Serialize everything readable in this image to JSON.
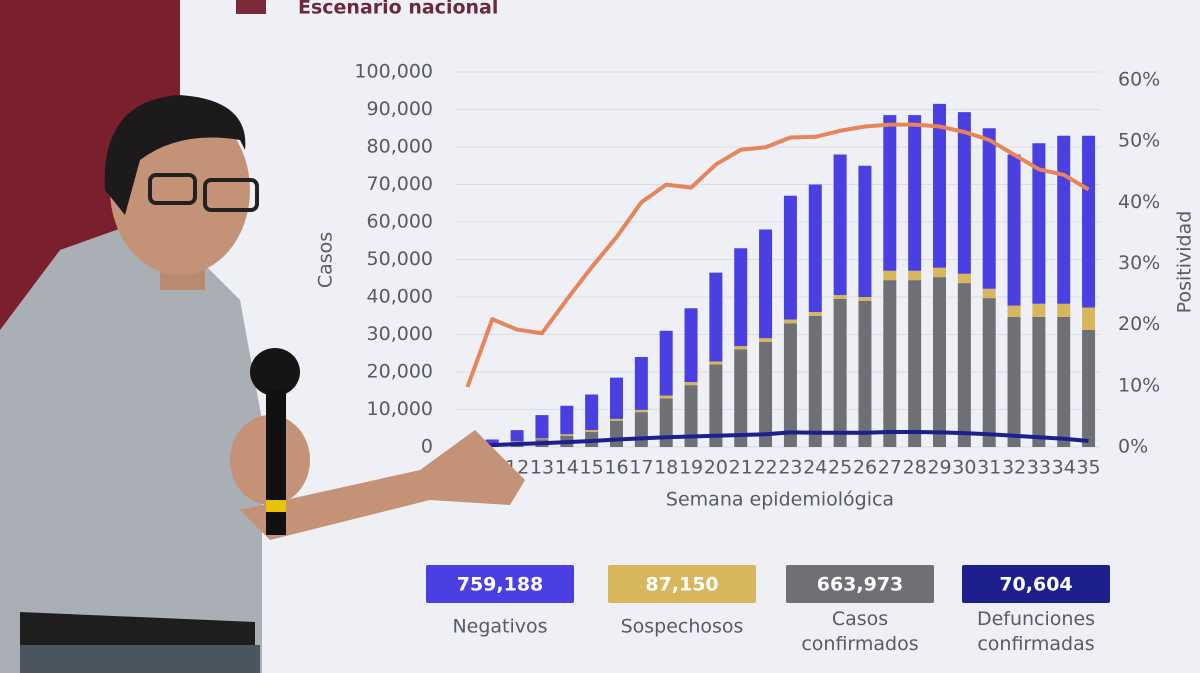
{
  "chart_data": {
    "type": "bar",
    "stacked": true,
    "title": "Escenario nacional",
    "x_label": "Semana epidemiológica",
    "y_label": "Casos",
    "y2_label": "Positividad",
    "categories": [
      null,
      null,
      "12",
      "13",
      "14",
      "15",
      "16",
      "17",
      "18",
      "19",
      "20",
      "21",
      "22",
      "23",
      "24",
      "25",
      "26",
      "27",
      "28",
      "29",
      "30",
      "31",
      "32",
      "33",
      "34",
      "35"
    ],
    "series": [
      {
        "name": "Negativos",
        "type": "bar",
        "color": "#4a3fe0",
        "total": 759188,
        "total_label": "759,188",
        "values": [
          600,
          1200,
          3000,
          6200,
          7600,
          9500,
          11000,
          14100,
          17300,
          19700,
          23700,
          26100,
          29000,
          33000,
          34000,
          37500,
          35000,
          41500,
          41500,
          43700,
          43100,
          42800,
          40300,
          42800,
          44800,
          45800
        ]
      },
      {
        "name": "Sospechosos",
        "type": "bar",
        "color": "#d8b65c",
        "total": 87150,
        "total_label": "87,150",
        "values": [
          100,
          200,
          300,
          300,
          400,
          500,
          500,
          600,
          700,
          800,
          800,
          900,
          1000,
          1000,
          1000,
          1000,
          1000,
          2500,
          2500,
          2500,
          2500,
          2500,
          3000,
          3500,
          3500,
          6000
        ]
      },
      {
        "name": "Casos confirmados",
        "type": "bar",
        "color": "#6f6f76",
        "total": 663973,
        "total_label": "663,973",
        "values": [
          300,
          600,
          1200,
          2000,
          3000,
          4000,
          7000,
          9300,
          13000,
          16500,
          22000,
          26000,
          28000,
          33000,
          35000,
          39500,
          39000,
          44500,
          44500,
          45300,
          43700,
          39700,
          34700,
          34700,
          34700,
          31200
        ]
      },
      {
        "name": "Defunciones confirmadas",
        "type": "line",
        "color": "#1d1f8c",
        "total": 70604,
        "total_label": "70,604",
        "values": [
          300,
          500,
          800,
          1000,
          1300,
          1600,
          2000,
          2300,
          2600,
          2800,
          3000,
          3200,
          3400,
          3900,
          3800,
          3800,
          3800,
          4000,
          4000,
          3900,
          3700,
          3400,
          3000,
          2600,
          2200,
          1600
        ]
      },
      {
        "type": "line",
        "axis": "y2",
        "color": "#e8845a",
        "values": [
          9.8,
          20.9,
          19.2,
          18.6,
          24.1,
          29.4,
          34.3,
          40,
          42.9,
          42.4,
          46.2,
          48.6,
          49,
          50.6,
          50.7,
          51.7,
          52.4,
          52.7,
          52.7,
          52.4,
          51.5,
          50.2,
          47.8,
          45.4,
          44.5,
          42.1
        ]
      }
    ],
    "ylim": [
      0,
      100000
    ],
    "yticks": [
      0,
      {
        "value": 10000,
        "label": "10,000"
      },
      {
        "value": 20000,
        "label": "20,000"
      },
      {
        "value": 30000,
        "label": "30,000"
      },
      {
        "value": 40000,
        "label": "40,000"
      },
      {
        "value": 50000,
        "label": "50,000"
      },
      {
        "value": 60000,
        "label": "60,000"
      },
      {
        "value": 70000,
        "label": "70,000"
      },
      {
        "value": 80000,
        "label": "80,000"
      },
      {
        "value": 90000,
        "label": "90,000"
      },
      {
        "value": 100000,
        "label": "100,000"
      }
    ],
    "y2lim": [
      0,
      60
    ],
    "y2ticks": [
      {
        "value": 0,
        "label": "0%"
      },
      {
        "value": 10,
        "label": "10%"
      },
      {
        "value": 20,
        "label": "20%"
      },
      {
        "value": 30,
        "label": "30%"
      },
      {
        "value": 40,
        "label": "40%"
      },
      {
        "value": 50,
        "label": "50%"
      },
      {
        "value": 60,
        "label": "60%"
      }
    ],
    "grid": true
  }
}
